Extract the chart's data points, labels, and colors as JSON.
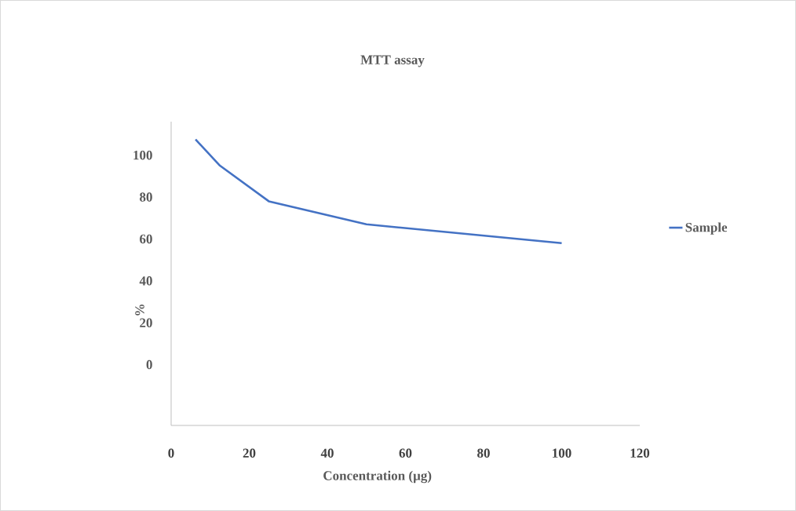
{
  "chart_data": {
    "type": "line",
    "title": "MTT assay",
    "xlabel": "Concentration (µg)",
    "ylabel": "%",
    "x": [
      6.25,
      12.5,
      25,
      50,
      100
    ],
    "series": [
      {
        "name": "Sample",
        "color": "#4472c4",
        "values": [
          107.5,
          95,
          78,
          67,
          58
        ]
      }
    ],
    "xlim": [
      0,
      120
    ],
    "ylim": [
      -29,
      116
    ],
    "xticks": [
      0,
      20,
      40,
      60,
      80,
      100,
      120
    ],
    "yticks": [
      0,
      20,
      40,
      60,
      80,
      100
    ],
    "legend": "right"
  }
}
